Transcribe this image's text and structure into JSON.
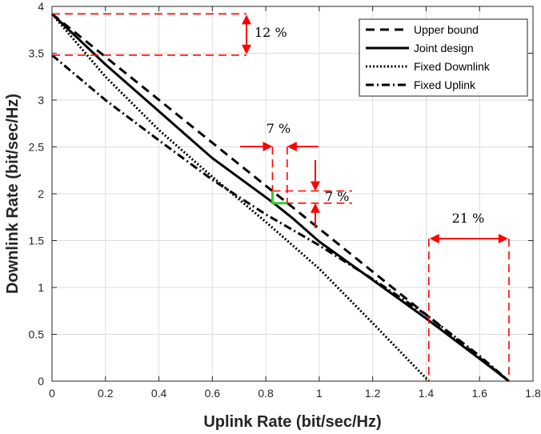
{
  "chart_data": {
    "type": "line",
    "title": "",
    "xlabel": "Uplink Rate (bit/sec/Hz)",
    "ylabel": "Downlink Rate (bit/sec/Hz)",
    "xlim": [
      0,
      1.8
    ],
    "ylim": [
      0,
      4
    ],
    "xticks": [
      0,
      0.2,
      0.4,
      0.6,
      0.8,
      1,
      1.2,
      1.4,
      1.6,
      1.8
    ],
    "yticks": [
      0,
      0.5,
      1,
      1.5,
      2,
      2.5,
      3,
      3.5,
      4
    ],
    "xtick_labels": [
      "0",
      "0.2",
      "0.4",
      "0.6",
      "0.8",
      "1",
      "1.2",
      "1.4",
      "1.6",
      "1.8"
    ],
    "ytick_labels": [
      "0",
      "0.5",
      "1",
      "1.5",
      "2",
      "2.5",
      "3",
      "3.5",
      "4"
    ],
    "grid": true,
    "legend_position": "top-right",
    "series": [
      {
        "name": "Upper bound",
        "style": "dashed",
        "x": [
          0,
          1.71
        ],
        "y": [
          3.92,
          0
        ]
      },
      {
        "name": "Joint design",
        "style": "solid",
        "x": [
          0,
          0.2,
          0.4,
          0.6,
          0.83,
          0.9,
          1.0,
          1.2,
          1.4,
          1.6,
          1.71
        ],
        "y": [
          3.92,
          3.38,
          2.88,
          2.38,
          1.9,
          1.74,
          1.49,
          1.08,
          0.67,
          0.24,
          0
        ]
      },
      {
        "name": "Fixed Downlink",
        "style": "dotted",
        "x": [
          0,
          0.2,
          0.4,
          0.6,
          0.8,
          1.0,
          1.2,
          1.41
        ],
        "y": [
          3.92,
          3.25,
          2.68,
          2.18,
          1.7,
          1.2,
          0.62,
          0
        ]
      },
      {
        "name": "Fixed Uplink",
        "style": "dashdot",
        "x": [
          0,
          0.2,
          0.4,
          0.6,
          0.8,
          1.0,
          1.2,
          1.4,
          1.6,
          1.71
        ],
        "y": [
          3.48,
          3.0,
          2.57,
          2.15,
          1.78,
          1.45,
          1.09,
          0.71,
          0.27,
          0
        ]
      }
    ],
    "annotations": [
      {
        "id": "ann-12",
        "text": "12 %"
      },
      {
        "id": "ann-7-top",
        "text": "7 %"
      },
      {
        "id": "ann-7-right",
        "text": "7 %"
      },
      {
        "id": "ann-21",
        "text": "21 %"
      }
    ],
    "colors": {
      "series": "#000000",
      "annotation": "#ff0000",
      "highlight": "#33cc33",
      "grid": "#dcdcdc"
    }
  }
}
